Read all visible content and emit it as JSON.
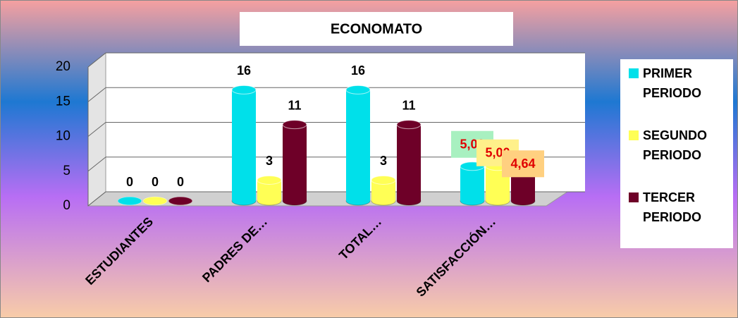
{
  "chart_data": {
    "type": "bar3d",
    "title": "ECONOMATO",
    "categories": [
      "ESTUDIANTES",
      "PADRES DE…",
      "TOTAL…",
      "SATISFACCIÓN…"
    ],
    "series": [
      {
        "name": "PRIMER PERIODO",
        "color": "#00e0ea",
        "values": [
          0,
          16,
          16,
          5
        ],
        "value_labels": [
          "0",
          "16",
          "16",
          "5,00"
        ]
      },
      {
        "name": "SEGUNDO PERIODO",
        "color": "#ffff55",
        "values": [
          0,
          3,
          3,
          5
        ],
        "value_labels": [
          "0",
          "3",
          "3",
          "5,00"
        ]
      },
      {
        "name": "TERCER PERIODO",
        "color": "#6e0028",
        "values": [
          0,
          11,
          11,
          4.64
        ],
        "value_labels": [
          "0",
          "11",
          "11",
          "4,64"
        ]
      }
    ],
    "ylim": [
      0,
      20
    ],
    "yticks": [
      0,
      5,
      10,
      15,
      20
    ],
    "grid": true,
    "legend": "right"
  }
}
